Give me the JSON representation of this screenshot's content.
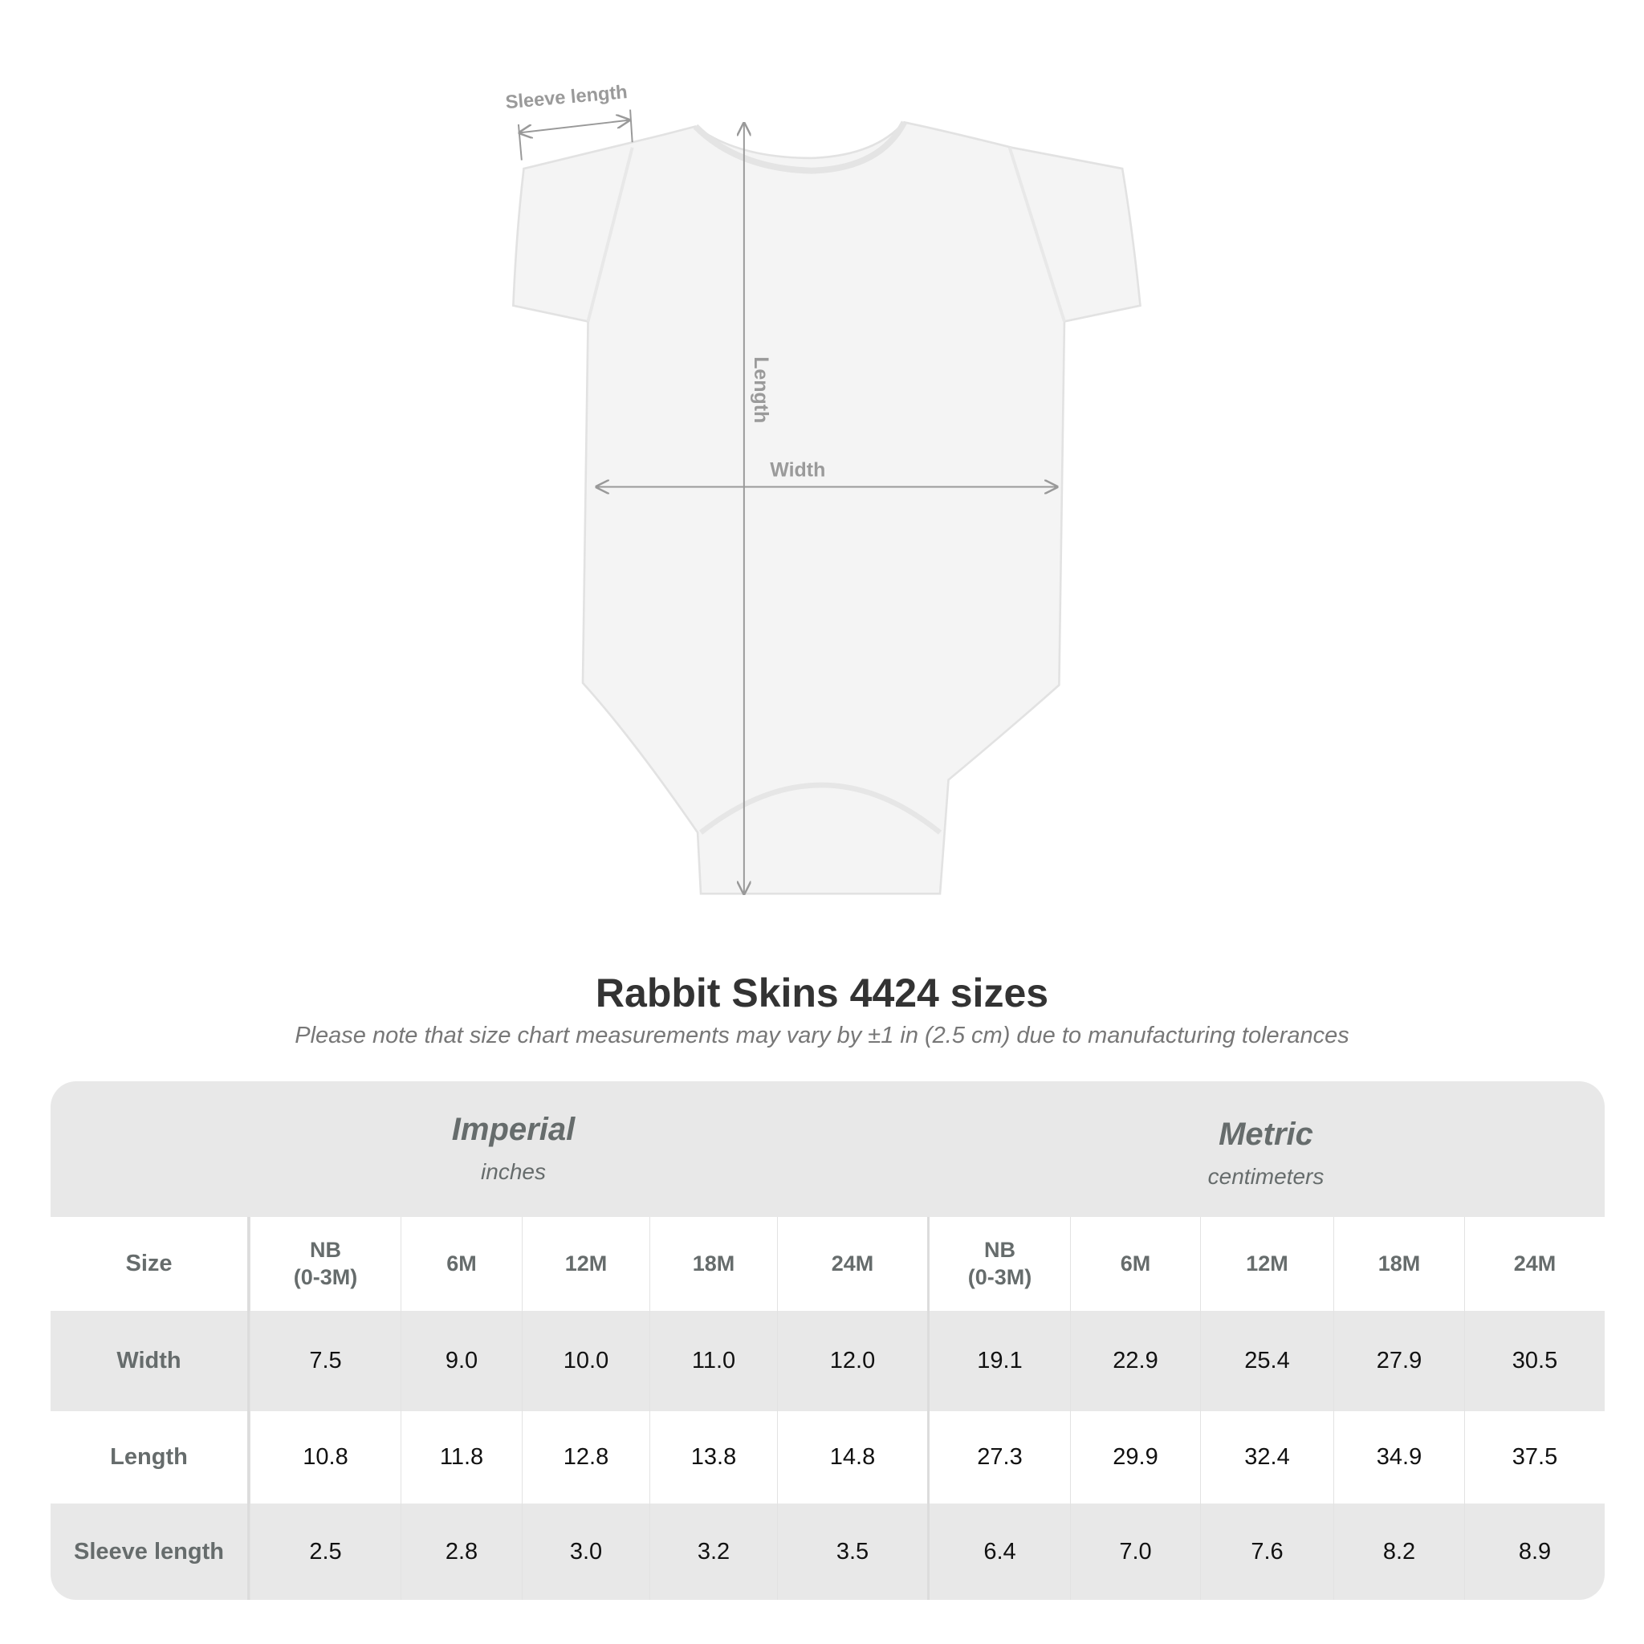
{
  "diagram": {
    "sleeve_label": "Sleeve length",
    "length_label": "Length",
    "width_label": "Width"
  },
  "title": "Rabbit Skins 4424 sizes",
  "subtitle": "Please note that size chart measurements may vary by ±1 in (2.5 cm) due to manufacturing tolerances",
  "table": {
    "imperial": {
      "name": "Imperial",
      "unit": "inches"
    },
    "metric": {
      "name": "Metric",
      "unit": "centimeters"
    },
    "size_label": "Size",
    "sizes": [
      "NB\n(0-3M)",
      "6M",
      "12M",
      "18M",
      "24M",
      "NB\n(0-3M)",
      "6M",
      "12M",
      "18M",
      "24M"
    ],
    "rows": [
      {
        "label": "Width",
        "values": [
          "7.5",
          "9.0",
          "10.0",
          "11.0",
          "12.0",
          "19.1",
          "22.9",
          "25.4",
          "27.9",
          "30.5"
        ]
      },
      {
        "label": "Length",
        "values": [
          "10.8",
          "11.8",
          "12.8",
          "13.8",
          "14.8",
          "27.3",
          "29.9",
          "32.4",
          "34.9",
          "37.5"
        ]
      },
      {
        "label": "Sleeve length",
        "values": [
          "2.5",
          "2.8",
          "3.0",
          "3.2",
          "3.5",
          "6.4",
          "7.0",
          "7.6",
          "8.2",
          "8.9"
        ]
      }
    ]
  },
  "colors": {
    "header_bg": "#e8e8e8",
    "label_text": "#666c6c",
    "title_text": "#333333",
    "arrow": "#999999"
  }
}
